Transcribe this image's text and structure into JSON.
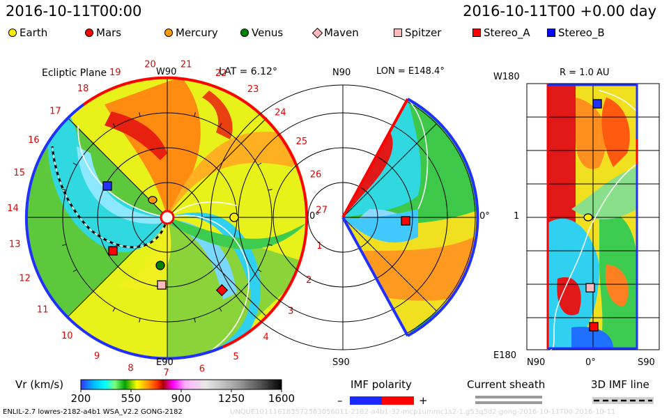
{
  "header": {
    "datetime_left": "2016-10-11T00:00",
    "datetime_right": "2016-10-11T00 +0.00 day"
  },
  "legend": {
    "items": [
      {
        "label": "Earth",
        "shape": "circle",
        "color": "#ffee00",
        "icon": "earth-marker-icon"
      },
      {
        "label": "Mars",
        "shape": "circle",
        "color": "#ff0000",
        "icon": "mars-marker-icon"
      },
      {
        "label": "Mercury",
        "shape": "circle",
        "color": "#ff9900",
        "icon": "mercury-marker-icon"
      },
      {
        "label": "Venus",
        "shape": "circle",
        "color": "#008000",
        "icon": "venus-marker-icon"
      },
      {
        "label": "Maven",
        "shape": "diamond",
        "color": "#ffbbbb",
        "icon": "maven-marker-icon"
      },
      {
        "label": "Spitzer",
        "shape": "square",
        "color": "#ffbbbb",
        "icon": "spitzer-marker-icon"
      },
      {
        "label": "Stereo_A",
        "shape": "square",
        "color": "#ff0000",
        "icon": "stereo-a-marker-icon"
      },
      {
        "label": "Stereo_B",
        "shape": "square",
        "color": "#0000ff",
        "icon": "stereo-b-marker-icon"
      }
    ]
  },
  "panels": {
    "ecliptic": {
      "title": "Ecliptic Plane",
      "lat_label": "LAT = 6.12°",
      "top_label": "W90",
      "bottom_label": "E90",
      "right_label": "0°"
    },
    "meridional": {
      "title_left": "N90",
      "lon_label": "LON = E148.4°",
      "bottom_label": "S90",
      "right_label": "0°"
    },
    "synoptic": {
      "left_top": "W180",
      "r_label": "R = 1.0 AU",
      "left_mid": "1",
      "left_bottom": "E180",
      "bottom_left": "N90",
      "bottom_mid": "0°",
      "bottom_right": "S90"
    }
  },
  "chart_data": [
    {
      "type": "heatmap",
      "title": "Ecliptic Plane",
      "subtitle": "LAT = 6.12°",
      "quantity": "Vr (km/s)",
      "view": "polar, sun-centered, ecliptic plane",
      "carrington_ticks": [
        19,
        20,
        21,
        22,
        23,
        24,
        25,
        26,
        27,
        1,
        2,
        3,
        4,
        5,
        6,
        7,
        8,
        9,
        10,
        11,
        12,
        13,
        14,
        15,
        16,
        17,
        18
      ],
      "bodies": [
        "Earth",
        "Mars",
        "Mercury",
        "Venus",
        "Maven",
        "Spitzer",
        "Stereo_A",
        "Stereo_B"
      ]
    },
    {
      "type": "heatmap",
      "title": "LON = E148.4°",
      "quantity": "Vr (km/s)",
      "view": "meridional plane",
      "ylabels": [
        "N90",
        "S90"
      ],
      "bodies": [
        "Stereo_A"
      ]
    },
    {
      "type": "heatmap",
      "title": "R = 1.0 AU",
      "quantity": "Vr (km/s)",
      "view": "synoptic map",
      "ylabels": [
        "W180",
        "1",
        "E180"
      ],
      "xlabels": [
        "N90",
        "0°",
        "S90"
      ],
      "bodies": [
        "Stereo_B",
        "Earth",
        "Spitzer",
        "Stereo_A"
      ]
    }
  ],
  "colorbar": {
    "label": "Vr (km/s)",
    "ticks": [
      "200",
      "550",
      "900",
      "1250",
      "1600"
    ],
    "min": 200,
    "max": 1600
  },
  "imf_polarity": {
    "label": "IMF polarity",
    "minus": "–",
    "plus": "+"
  },
  "current_sheath": {
    "label": "Current sheath"
  },
  "imf_line_3d": {
    "label": "3D IMF line"
  },
  "footer": {
    "credit": "ENLIL-2.7 lowres-2182-a4b1 WSA_V2.2 GONG-2182",
    "watermark": "UNQUE101116183572563056011-2182-a4b1-32-mcp1ummc1s2-1.g53q5d2-gong-2016-10-11T00   2016-10-11"
  }
}
